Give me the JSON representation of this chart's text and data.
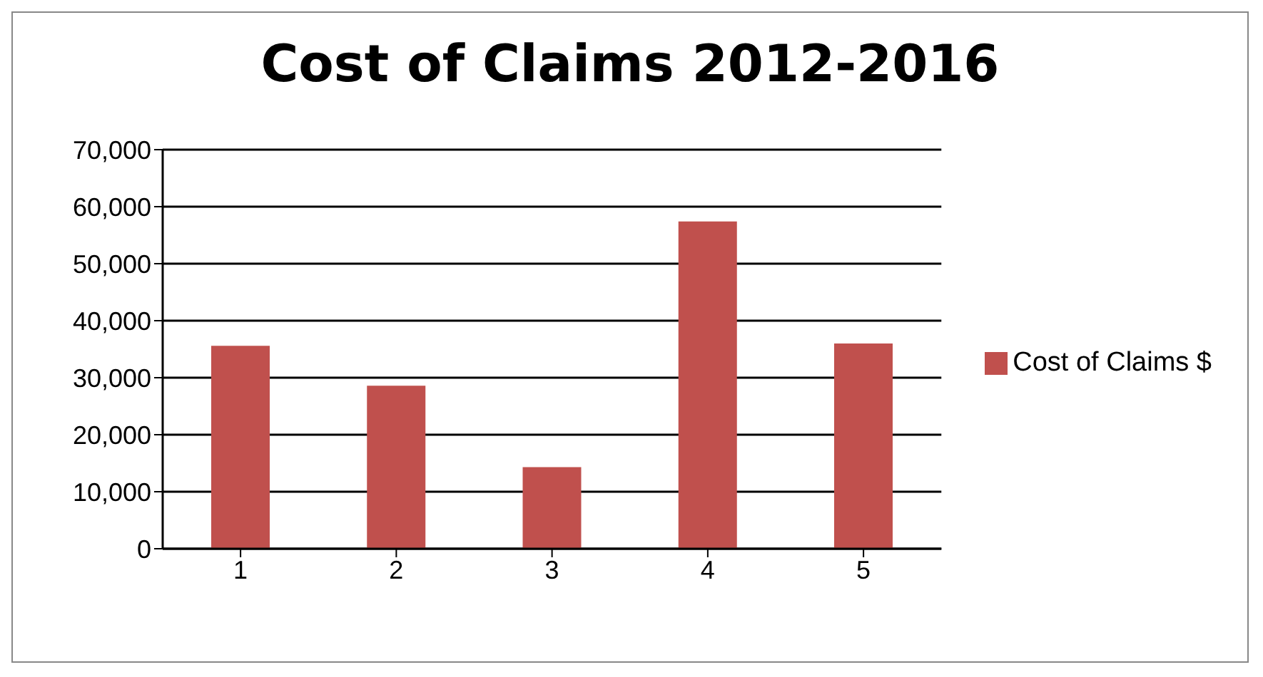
{
  "chart_data": {
    "type": "bar",
    "title": "Cost of Claims 2012-2016",
    "categories": [
      "1",
      "2",
      "3",
      "4",
      "5"
    ],
    "series": [
      {
        "name": "Cost of Claims $",
        "color": "#c0504d",
        "values": [
          35600,
          28600,
          14300,
          57400,
          36000
        ]
      }
    ],
    "ylim": [
      0,
      70000
    ],
    "yticks": [
      {
        "value": 0,
        "label": "0"
      },
      {
        "value": 10000,
        "label": "10,000"
      },
      {
        "value": 20000,
        "label": "20,000"
      },
      {
        "value": 30000,
        "label": "30,000"
      },
      {
        "value": 40000,
        "label": "40,000"
      },
      {
        "value": 50000,
        "label": "50,000"
      },
      {
        "value": 60000,
        "label": "60,000"
      },
      {
        "value": 70000,
        "label": "70,000"
      }
    ],
    "grid": "y",
    "legend": "right"
  }
}
